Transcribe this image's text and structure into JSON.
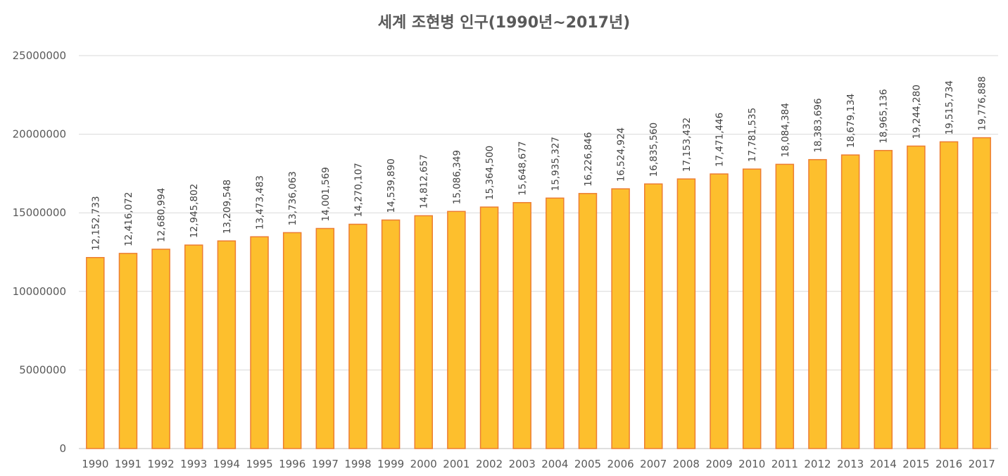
{
  "chart_data": {
    "type": "bar",
    "title": "세계 조현병 인구(1990년~2017년)",
    "xlabel": "",
    "ylabel": "",
    "ylim": [
      0,
      25000000
    ],
    "yticks": [
      "0",
      "5000000",
      "10000000",
      "15000000",
      "20000000",
      "25000000"
    ],
    "ytick_values": [
      0,
      5000000,
      10000000,
      15000000,
      20000000,
      25000000
    ],
    "categories": [
      "1990",
      "1991",
      "1992",
      "1993",
      "1994",
      "1995",
      "1996",
      "1997",
      "1998",
      "1999",
      "2000",
      "2001",
      "2002",
      "2003",
      "2004",
      "2005",
      "2006",
      "2007",
      "2008",
      "2009",
      "2010",
      "2011",
      "2012",
      "2013",
      "2014",
      "2015",
      "2016",
      "2017"
    ],
    "values": [
      12152733,
      12416072,
      12680994,
      12945802,
      13209548,
      13473483,
      13736063,
      14001569,
      14270107,
      14539890,
      14812657,
      15086349,
      15364500,
      15648677,
      15935327,
      16226846,
      16524924,
      16835560,
      17153432,
      17471446,
      17781535,
      18084384,
      18383696,
      18679134,
      18965136,
      19244280,
      19515734,
      19776888
    ],
    "data_labels": [
      "12,152,733",
      "12,416,072",
      "12,680,994",
      "12,945,802",
      "13,209,548",
      "13,473,483",
      "13,736,063",
      "14,001,569",
      "14,270,107",
      "14,539,890",
      "14,812,657",
      "15,086,349",
      "15,364,500",
      "15,648,677",
      "15,935,327",
      "16,226,846",
      "16,524,924",
      "16,835,560",
      "17,153,432",
      "17,471,446",
      "17,781,535",
      "18,084,384",
      "18,383,696",
      "18,679,134",
      "18,965,136",
      "19,244,280",
      "19,515,734",
      "19,776,888"
    ],
    "grid": true,
    "legend": "none",
    "colors": {
      "bar_fill": "#FDBF2D",
      "bar_stroke": "#ED7D31",
      "grid": "#D9D9D9",
      "axis": "#BFBFBF"
    }
  }
}
